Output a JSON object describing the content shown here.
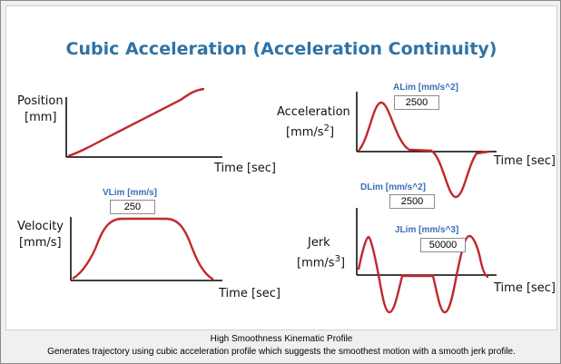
{
  "title": "Cubic Acceleration (Acceleration Continuity)",
  "position_plot": {
    "ylabel_line1": "Position",
    "ylabel_line2": "[mm]",
    "xlabel": "Time [sec]"
  },
  "velocity_plot": {
    "ylabel_line1": "Velocity",
    "ylabel_line2": "[mm/s]",
    "xlabel": "Time [sec]",
    "param_label": "VLim [mm/s]",
    "param_value": "250"
  },
  "acceleration_plot": {
    "ylabel_line1": "Acceleration",
    "ylabel_line2_base": "[mm/s",
    "ylabel_line2_exp": "2",
    "ylabel_line2_end": "]",
    "xlabel": "Time [sec]",
    "param_label": "ALim [mm/s^2]",
    "param_value": "2500",
    "param2_label": "DLim [mm/s^2]",
    "param2_value": "2500"
  },
  "jerk_plot": {
    "ylabel_line1": "Jerk",
    "ylabel_line2_base": "[mm/s",
    "ylabel_line2_exp": "3",
    "ylabel_line2_end": "]",
    "xlabel": "Time [sec]",
    "param_label": "JLim [mm/s^3]",
    "param_value": "50000"
  },
  "footer": {
    "heading": "High Smoothness Kinematic Profile",
    "description": "Generates trajectory using cubic acceleration profile which suggests the smoothest motion with a smooth jerk profile."
  },
  "colors": {
    "curve": "#c0282d",
    "axis": "#000000",
    "title": "#2f73a6",
    "param": "#3a6fb8"
  }
}
